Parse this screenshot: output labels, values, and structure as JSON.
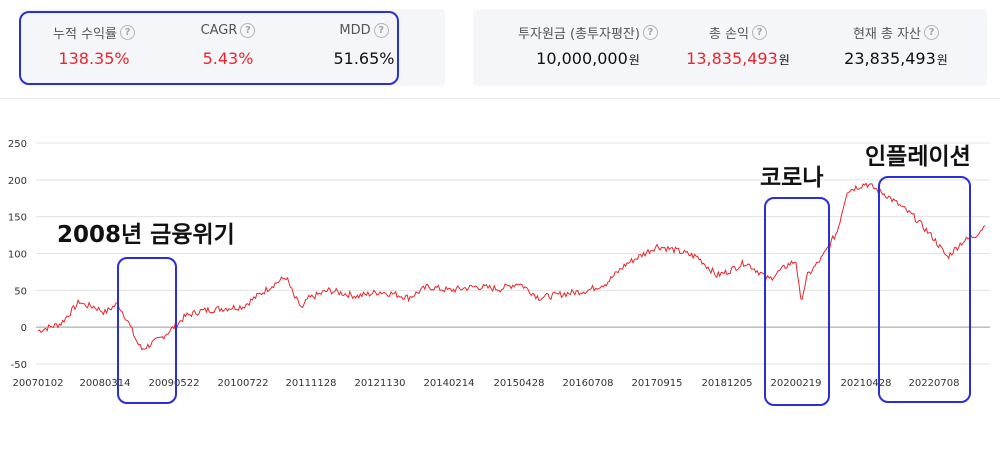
{
  "summary": {
    "cumulative_return": {
      "label": "누적 수익률",
      "value": "138.35%"
    },
    "cagr": {
      "label": "CAGR",
      "value": "5.43%"
    },
    "mdd": {
      "label": "MDD",
      "value": "51.65%"
    },
    "principal": {
      "label": "투자원금 (총투자평잔)",
      "value": "10,000,000",
      "unit": "원"
    },
    "total_profit": {
      "label": "총 손익",
      "value": "13,835,493",
      "unit": "원"
    },
    "total_assets": {
      "label": "현재 총 자산",
      "value": "23,835,493",
      "unit": "원"
    }
  },
  "colors": {
    "line": "#e8262b",
    "highlight": "#2b2fd6",
    "value_red": "#e8262b"
  },
  "chart_data": {
    "type": "line",
    "y_ticks": [
      "250",
      "200",
      "150",
      "100",
      "50",
      "0",
      "-50"
    ],
    "ylim": [
      -50,
      250
    ],
    "x_ticks": [
      "20070102",
      "20080314",
      "20090522",
      "20100722",
      "20111128",
      "20121130",
      "20140214",
      "20150428",
      "20160708",
      "20170915",
      "20181205",
      "20200219",
      "20210428",
      "20220708"
    ],
    "grid": true,
    "series": [
      {
        "points": [
          [
            "20070102",
            -5
          ],
          [
            "20070601",
            5
          ],
          [
            "20071001",
            35
          ],
          [
            "20071101",
            30
          ],
          [
            "20080101",
            28
          ],
          [
            "20080314",
            20
          ],
          [
            "20080601",
            32
          ],
          [
            "20080801",
            10
          ],
          [
            "20081001",
            -20
          ],
          [
            "20081101",
            -30
          ],
          [
            "20090301",
            -15
          ],
          [
            "20090522",
            0
          ],
          [
            "20090801",
            15
          ],
          [
            "20091101",
            22
          ],
          [
            "20100301",
            25
          ],
          [
            "20100722",
            28
          ],
          [
            "20101101",
            42
          ],
          [
            "20110301",
            58
          ],
          [
            "20110601",
            68
          ],
          [
            "20110801",
            40
          ],
          [
            "20110928",
            25
          ],
          [
            "20111101",
            38
          ],
          [
            "20120301",
            50
          ],
          [
            "20120801",
            42
          ],
          [
            "20121130",
            48
          ],
          [
            "20130301",
            45
          ],
          [
            "20130601",
            40
          ],
          [
            "20131001",
            55
          ],
          [
            "20140214",
            50
          ],
          [
            "20140801",
            55
          ],
          [
            "20150101",
            52
          ],
          [
            "20150428",
            60
          ],
          [
            "20150901",
            40
          ],
          [
            "20160201",
            45
          ],
          [
            "20160708",
            50
          ],
          [
            "20161101",
            60
          ],
          [
            "20170301",
            85
          ],
          [
            "20170915",
            110
          ],
          [
            "20180101",
            105
          ],
          [
            "20180601",
            95
          ],
          [
            "20181001",
            70
          ],
          [
            "20181205",
            75
          ],
          [
            "20190401",
            88
          ],
          [
            "20190901",
            65
          ],
          [
            "20200101",
            85
          ],
          [
            "20200219",
            90
          ],
          [
            "20200319",
            35
          ],
          [
            "20200501",
            70
          ],
          [
            "20200801",
            95
          ],
          [
            "20201101",
            130
          ],
          [
            "20210101",
            185
          ],
          [
            "20210428",
            195
          ],
          [
            "20210901",
            180
          ],
          [
            "20211201",
            165
          ],
          [
            "20220301",
            150
          ],
          [
            "20220708",
            120
          ],
          [
            "20221001",
            95
          ],
          [
            "20230101",
            115
          ],
          [
            "20230401",
            125
          ],
          [
            "20230601",
            138
          ]
        ]
      }
    ]
  },
  "annotations": {
    "crisis_2008": "2008년 금융위기",
    "covid": "코로나",
    "inflation": "인플레이션"
  }
}
